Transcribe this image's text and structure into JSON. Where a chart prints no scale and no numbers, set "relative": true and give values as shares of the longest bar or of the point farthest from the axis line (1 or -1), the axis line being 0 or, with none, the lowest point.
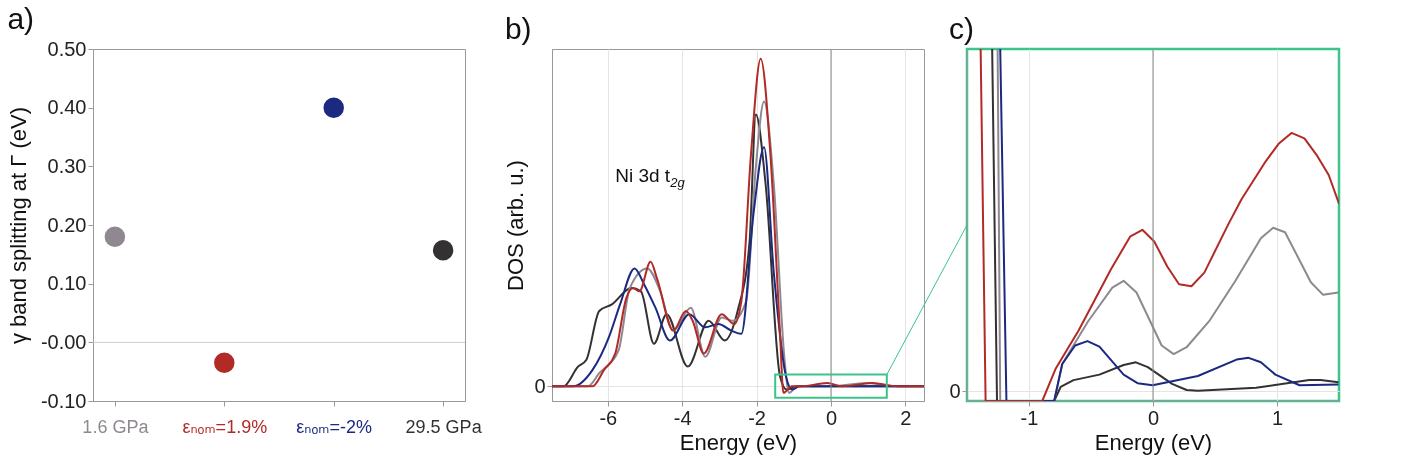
{
  "chart_data": [
    {
      "type": "scatter",
      "title": "a)",
      "ylabel": "γ band splitting at Γ (eV)",
      "categories": [
        "1.6 GPa",
        "εₙₒₘ=1.9%",
        "εₙₒₘ=-2%",
        "29.5 GPa"
      ],
      "values": [
        0.18,
        -0.035,
        0.4,
        0.157
      ],
      "colors": [
        "#8f8891",
        "#b22a26",
        "#1b2a80",
        "#333132"
      ],
      "ylim": [
        -0.1,
        0.5
      ],
      "yticks": [
        {
          "value": 0.5,
          "label": "0.50"
        },
        {
          "value": 0.4,
          "label": "0.40"
        },
        {
          "value": 0.3,
          "label": "0.30"
        },
        {
          "value": 0.2,
          "label": "0.20"
        },
        {
          "value": 0.1,
          "label": "0.10"
        },
        {
          "value": 0,
          "label": "-0.00"
        },
        {
          "value": -0.1,
          "label": "-0.10"
        }
      ],
      "ref_lines": [
        {
          "axis": "y",
          "value": 0,
          "color": "#cccccc"
        }
      ],
      "marker": "circle"
    },
    {
      "type": "line",
      "title": "b)",
      "xlabel": "Energy (eV)",
      "ylabel": "DOS (arb. u.)",
      "relative": true,
      "xlim": [
        -7.5,
        2.5
      ],
      "xticks": [
        -6,
        -4,
        -2,
        0,
        2
      ],
      "grid": true,
      "ref_lines": [
        {
          "axis": "x",
          "value": 0,
          "color": "#888888"
        }
      ],
      "annotations": [
        "Ni 3d t$_{2g}$",
        "0"
      ],
      "series": [
        {
          "color": "#333132",
          "x": [
            -7.5,
            -7.19,
            -6.8,
            -6.58,
            -6.23,
            -5.89,
            -5.37,
            -5.11,
            -4.76,
            -4.42,
            -3.85,
            -3.29,
            -2.86,
            -2.51,
            -2.19,
            -2.02,
            -1.76,
            -1.37,
            -1.19,
            -0.9,
            0,
            1.3,
            2.5
          ],
          "values": [
            0,
            0,
            0.06,
            0.08,
            0.23,
            0.25,
            0.3,
            0.29,
            0.13,
            0.22,
            0.06,
            0.2,
            0.14,
            0.23,
            0.44,
            0.83,
            0.62,
            0.03,
            -0.01,
            0,
            0,
            0,
            0
          ]
        },
        {
          "color": "#8f8891",
          "x": [
            -7.5,
            -6.54,
            -6.23,
            -5.71,
            -5.41,
            -4.94,
            -4.59,
            -4.24,
            -3.77,
            -3.38,
            -2.94,
            -2.64,
            -2.28,
            -2.02,
            -1.8,
            -1.54,
            -1.24,
            -1.13,
            -0.9,
            -0.1,
            1.0,
            1.8,
            2.5
          ],
          "values": [
            0,
            0,
            0.04,
            0.11,
            0.3,
            0.36,
            0.29,
            0.17,
            0.24,
            0.09,
            0.21,
            0.2,
            0.26,
            0.67,
            0.87,
            0.62,
            0.07,
            -0.02,
            0,
            0,
            0.01,
            0,
            0
          ]
        },
        {
          "color": "#1b2a80",
          "x": [
            -7.5,
            -6.93,
            -6.41,
            -5.97,
            -5.67,
            -5.28,
            -5.02,
            -4.72,
            -4.33,
            -3.81,
            -3.38,
            -3.03,
            -2.68,
            -2.41,
            -2.08,
            -1.8,
            -1.54,
            -1.21,
            -1.04,
            -0.85,
            0.7,
            2.5
          ],
          "values": [
            0,
            0,
            0.05,
            0.15,
            0.25,
            0.36,
            0.31,
            0.24,
            0.14,
            0.22,
            0.18,
            0.19,
            0.17,
            0.16,
            0.53,
            0.73,
            0.35,
            0.03,
            -0.01,
            0,
            0,
            0
          ]
        },
        {
          "color": "#b22a26",
          "x": [
            -7.5,
            -6.41,
            -6.1,
            -5.8,
            -5.5,
            -5.32,
            -5.15,
            -4.85,
            -4.68,
            -4.24,
            -3.9,
            -3.72,
            -3.42,
            -2.94,
            -2.6,
            -2.41,
            -2.15,
            -1.89,
            -1.63,
            -1.37,
            -1.28,
            -1.05,
            -0.8,
            -0.1,
            0.3,
            1.1,
            1.8,
            2.5
          ],
          "values": [
            0,
            0,
            0.05,
            0.1,
            0.27,
            0.3,
            0.29,
            0.38,
            0.33,
            0.17,
            0.23,
            0.2,
            0.1,
            0.22,
            0.19,
            0.26,
            0.71,
            1,
            0.71,
            0.16,
            -0.02,
            0,
            0,
            0.01,
            0,
            0.01,
            0,
            0
          ]
        }
      ]
    },
    {
      "type": "line",
      "title": "c)",
      "xlabel": "Energy (eV)",
      "relative": true,
      "annotations": [
        "0"
      ],
      "xlim": [
        -1.5,
        1.5
      ],
      "xticks": [
        -1,
        0,
        1
      ],
      "grid": true,
      "ref_lines": [
        {
          "axis": "x",
          "value": 0,
          "color": "#888888"
        }
      ],
      "series": [
        {
          "color": "#333132",
          "x": [
            -1.297,
            -1.258,
            -0.797,
            -0.745,
            -0.641,
            -0.432,
            -0.237,
            -0.138,
            -0.042,
            0.154,
            0.271,
            0.362,
            0.831,
            1.26,
            1.352,
            1.495
          ],
          "values": [
            1,
            -0.028,
            -0.028,
            0.013,
            0.033,
            0.049,
            0.077,
            0.085,
            0.071,
            0.022,
            0.004,
            0.002,
            0.011,
            0.033,
            0.033,
            0.027
          ]
        },
        {
          "color": "#8f8891",
          "x": [
            -1.253,
            -1.232,
            -0.797,
            -0.732,
            -0.523,
            -0.328,
            -0.237,
            -0.133,
            0.07,
            0.167,
            0.271,
            0.453,
            0.661,
            0.87,
            0.969,
            1.065,
            1.273,
            1.372,
            1.495
          ],
          "values": [
            1,
            -0.028,
            -0.028,
            0.08,
            0.205,
            0.303,
            0.323,
            0.289,
            0.134,
            0.109,
            0.129,
            0.205,
            0.321,
            0.447,
            0.478,
            0.465,
            0.319,
            0.282,
            0.289
          ]
        },
        {
          "color": "#1b2a80",
          "x": [
            -1.232,
            -1.182,
            -0.797,
            -0.732,
            -0.628,
            -0.529,
            -0.432,
            -0.237,
            -0.125,
            -0.003,
            0.362,
            0.674,
            0.771,
            0.87,
            0.987,
            1.182,
            1.495
          ],
          "values": [
            1,
            -0.028,
            -0.028,
            0.08,
            0.134,
            0.147,
            0.131,
            0.049,
            0.024,
            0.018,
            0.045,
            0.093,
            0.098,
            0.085,
            0.049,
            0.018,
            0.02
          ]
        },
        {
          "color": "#b22a26",
          "x": [
            -1.39,
            -1.35,
            -0.893,
            -0.784,
            -0.6,
            -0.34,
            -0.185,
            -0.086,
            0.01,
            0.115,
            0.21,
            0.31,
            0.414,
            0.61,
            0.714,
            0.909,
            1.013,
            1.117,
            1.221,
            1.326,
            1.417,
            1.5
          ],
          "values": [
            1,
            -0.028,
            -0.028,
            0.067,
            0.178,
            0.356,
            0.452,
            0.472,
            0.438,
            0.365,
            0.313,
            0.307,
            0.347,
            0.49,
            0.561,
            0.672,
            0.723,
            0.755,
            0.739,
            0.687,
            0.632,
            0.548
          ]
        }
      ]
    }
  ]
}
